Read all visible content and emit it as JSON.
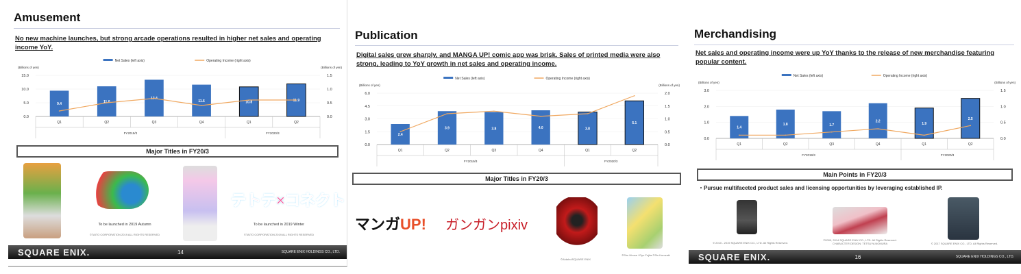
{
  "colors": {
    "bar": "#3b73c0",
    "line": "#f0a860",
    "footer": "#1a1a1a"
  },
  "slides": [
    {
      "title": "Amusement",
      "subtitle": "No new machine launches, but strong arcade operations resulted in higher net sales and operating income YoY.",
      "box": "Major Titles in FY20/3",
      "captions": [
        "To be launched in 2019 Autumn",
        "To be launched in 2019 Winter"
      ],
      "copyrights": [
        "©TAITO CORPORATION 2019 ALL RIGHTS RESERVED",
        "©TAITO CORPORATION 2019 ALL RIGHTS RESERVED"
      ],
      "logo_text": "テトテ×コネクト",
      "footer": {
        "logo": "SQUARE ENIX.",
        "page": "14",
        "company": "SQUARE ENIX HOLDINGS CO., LTD."
      }
    },
    {
      "title": "Publication",
      "subtitle": "Digital sales grew sharply, and MANGA UP! comic app was brisk. Sales of printed media were also strong, leading to YoY growth in net sales and operating income.",
      "box": "Major Titles in FY20/3",
      "logos": [
        "マンガ",
        "UP!",
        "ガンガンpixiv"
      ],
      "copyrights": [
        "©AidaIro/SQUARE ENIX",
        "©Shu Hirose / Ryu Fujita ©Sin Kurozaki"
      ]
    },
    {
      "title": "Merchandising",
      "subtitle": "Net sales and operating income were up YoY thanks to the release of new merchandise featuring popular content.",
      "box": "Main Points in FY20/3",
      "bullet": "・Pursue multifaceted product sales and licensing opportunities by leveraging established IP.",
      "copyrights": [
        "© 2010 - 2019 SQUARE ENIX CO., LTD. All Rights Reserved.",
        "©2009, 2014 SQUARE ENIX CO., LTD. All Rights Reserved. CHARACTER DESIGN: TETSUYA NOMURA",
        "© 2017 SQUARE ENIX CO., LTD. All Rights Reserved."
      ],
      "footer": {
        "logo": "SQUARE ENIX.",
        "page": "16",
        "company": "SQUARE ENIX HOLDINGS CO., LTD."
      }
    }
  ],
  "chart_data": [
    {
      "type": "bar+line",
      "categories": [
        "Q1",
        "Q2",
        "Q3",
        "Q4",
        "Q1",
        "Q2"
      ],
      "groups": [
        "FY2019/3",
        "FY2020/3"
      ],
      "series": [
        {
          "name": "Net Sales (left axis)",
          "type": "bar",
          "values": [
            9.4,
            11.0,
            13.4,
            11.6,
            10.8,
            11.9
          ]
        },
        {
          "name": "Operating Income (right axis)",
          "type": "line",
          "values": [
            0.2,
            0.5,
            0.66,
            0.4,
            0.6,
            0.6
          ]
        }
      ],
      "yunit": "(Billions of yen)",
      "ylim": [
        0,
        15
      ],
      "yticks": [
        "0.0",
        "5.0",
        "10.0",
        "15.0"
      ],
      "y2lim": [
        0,
        1.5
      ],
      "y2ticks": [
        "0.0",
        "0.5",
        "1.0",
        "1.5"
      ]
    },
    {
      "type": "bar+line",
      "categories": [
        "Q1",
        "Q2",
        "Q3",
        "Q4",
        "Q1",
        "Q2"
      ],
      "groups": [
        "FY2019/3",
        "FY2020/3"
      ],
      "series": [
        {
          "name": "Net Sales (left axis)",
          "type": "bar",
          "values": [
            2.4,
            3.9,
            3.8,
            4.0,
            3.8,
            5.1
          ]
        },
        {
          "name": "Operating Income (right axis)",
          "type": "line",
          "values": [
            0.5,
            1.2,
            1.3,
            1.1,
            1.2,
            1.9
          ]
        }
      ],
      "yunit": "(Billions of yen)",
      "ylim": [
        0,
        6
      ],
      "yticks": [
        "0.0",
        "1.5",
        "3.0",
        "4.5",
        "6.0"
      ],
      "y2lim": [
        0,
        2
      ],
      "y2ticks": [
        "0.0",
        "0.5",
        "1.0",
        "1.5",
        "2.0"
      ]
    },
    {
      "type": "bar+line",
      "categories": [
        "Q1",
        "Q2",
        "Q3",
        "Q4",
        "Q1",
        "Q2"
      ],
      "groups": [
        "FY2019/3",
        "FY2020/3"
      ],
      "series": [
        {
          "name": "Net Sales (left axis)",
          "type": "bar",
          "values": [
            1.4,
            1.8,
            1.7,
            2.2,
            1.9,
            2.5
          ]
        },
        {
          "name": "Operating Income (right axis)",
          "type": "line",
          "values": [
            0.1,
            0.1,
            0.2,
            0.3,
            0.1,
            0.4
          ]
        }
      ],
      "yunit": "(Billions of yen)",
      "ylim": [
        0,
        3
      ],
      "yticks": [
        "0.0",
        "1.0",
        "2.0",
        "3.0"
      ],
      "y2lim": [
        0,
        1.5
      ],
      "y2ticks": [
        "0.0",
        "0.5",
        "1.0",
        "1.5"
      ]
    }
  ]
}
